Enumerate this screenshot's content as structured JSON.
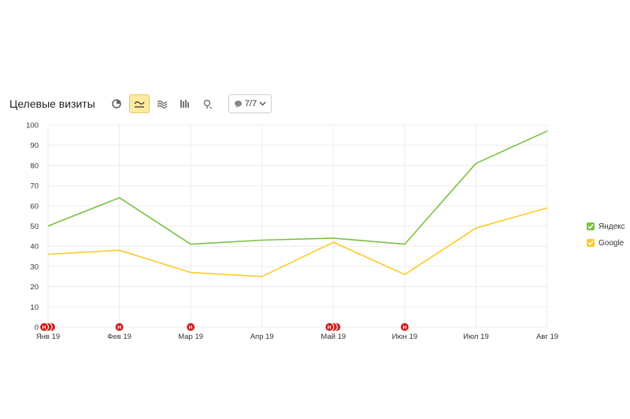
{
  "widget": {
    "title": "Целевые визиты",
    "annotations_label": "7/7",
    "toolbar_icons": [
      "pie-chart-icon",
      "line-chart-icon",
      "area-chart-icon",
      "column-chart-icon",
      "map-pin-icon"
    ],
    "active_view": "line-chart-icon"
  },
  "colors": {
    "yandex": "#7ac142",
    "google": "#ffc928",
    "grid": "#ececec",
    "marker": "#cc1f1f"
  },
  "chart_data": {
    "type": "line",
    "categories": [
      "Янв 19",
      "Фев 19",
      "Мар 19",
      "Апр 19",
      "Май 19",
      "Июн 19",
      "Июл 19",
      "Авг 19"
    ],
    "ylim": [
      0,
      100
    ],
    "yticks": [
      0,
      10,
      20,
      30,
      40,
      50,
      60,
      70,
      80,
      90,
      100
    ],
    "grid": true,
    "legend_position": "right",
    "series": [
      {
        "name": "Яндекс",
        "color": "#7ac142",
        "values": [
          50,
          64,
          41,
          43,
          44,
          41,
          81,
          97
        ]
      },
      {
        "name": "Google",
        "color": "#ffc928",
        "values": [
          36,
          38,
          27,
          25,
          42,
          26,
          49,
          59
        ]
      }
    ],
    "annotations": [
      {
        "category": "Янв 19",
        "label": "Н",
        "count": 3
      },
      {
        "category": "Фев 19",
        "label": "Н",
        "count": 1
      },
      {
        "category": "Мар 19",
        "label": "Н",
        "count": 1
      },
      {
        "category": "Май 19",
        "label": "Н",
        "count": 3
      },
      {
        "category": "Июн 19",
        "label": "Н",
        "count": 1
      }
    ]
  }
}
